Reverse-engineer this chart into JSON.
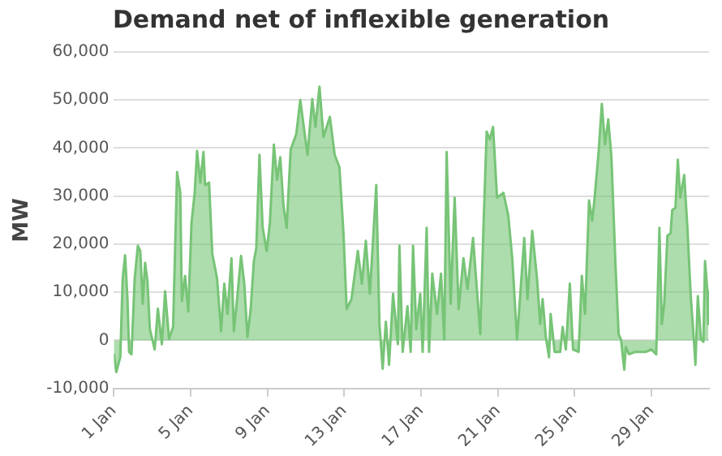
{
  "chart_data": {
    "type": "area",
    "title": "Demand net of inflexible generation",
    "ylabel": "MW",
    "xlim": [
      "--01-01",
      "--02-01"
    ],
    "ylim": [
      -10000,
      60000
    ],
    "xticks": [
      {
        "value": "--01-01",
        "label": "1 Jan"
      },
      {
        "value": "--01-05",
        "label": "5 Jan"
      },
      {
        "value": "--01-09",
        "label": "9 Jan"
      },
      {
        "value": "--01-13",
        "label": "13 Jan"
      },
      {
        "value": "--01-17",
        "label": "17 Jan"
      },
      {
        "value": "--01-21",
        "label": "21 Jan"
      },
      {
        "value": "--01-25",
        "label": "25 Jan"
      },
      {
        "value": "--01-29",
        "label": "29 Jan"
      }
    ],
    "yticks": [
      {
        "value": -10000,
        "label": "-10,000"
      },
      {
        "value": 0,
        "label": "0"
      },
      {
        "value": 10000,
        "label": "10,000"
      },
      {
        "value": 20000,
        "label": "20,000"
      },
      {
        "value": 30000,
        "label": "30,000"
      },
      {
        "value": 40000,
        "label": "40,000"
      },
      {
        "value": 50000,
        "label": "50,000"
      },
      {
        "value": 60000,
        "label": "60,000"
      }
    ],
    "grid": "y",
    "legend": false,
    "marker": "none",
    "line_style": "solid",
    "x": [
      "--01-01T00:00",
      "--01-01T03:00",
      "--01-01T08:00",
      "--01-01T11:00",
      "--01-01T14:00",
      "--01-01T17:00",
      "--01-01T19:00",
      "--01-01T22:00",
      "--01-02T02:00",
      "--01-02T06:00",
      "--01-02T09:00",
      "--01-02T12:00",
      "--01-02T15:00",
      "--01-02T18:00",
      "--01-02T21:00",
      "--01-03T03:00",
      "--01-03T07:00",
      "--01-03T12:00",
      "--01-03T16:00",
      "--01-03T21:00",
      "--01-04T02:00",
      "--01-04T07:00",
      "--01-04T11:00",
      "--01-04T13:00",
      "--01-04T17:00",
      "--01-04T21:00",
      "--01-05T01:00",
      "--01-05T05:00",
      "--01-05T08:00",
      "--01-05T12:00",
      "--01-05T16:00",
      "--01-05T18:00",
      "--01-05T23:00",
      "--01-06T03:00",
      "--01-06T09:00",
      "--01-06T14:00",
      "--01-06T18:00",
      "--01-06T22:00",
      "--01-07T03:00",
      "--01-07T06:00",
      "--01-07T10:00",
      "--01-07T15:00",
      "--01-07T19:00",
      "--01-07T23:00",
      "--01-08T03:00",
      "--01-08T07:00",
      "--01-08T10:00",
      "--01-08T14:00",
      "--01-08T18:00",
      "--01-08T23:00",
      "--01-09T03:00",
      "--01-09T08:00",
      "--01-09T12:00",
      "--01-09T16:00",
      "--01-09T20:00",
      "--01-10T00:00",
      "--01-10T05:00",
      "--01-10T12:00",
      "--01-10T17:00",
      "--01-11T02:00",
      "--01-11T08:00",
      "--01-11T12:00",
      "--01-11T17:00",
      "--01-11T22:00",
      "--01-12T06:00",
      "--01-12T12:00",
      "--01-12T18:00",
      "--01-12T23:00",
      "--01-13T03:00",
      "--01-13T09:00",
      "--01-13T17:00",
      "--01-13T22:00",
      "--01-14T03:00",
      "--01-14T08:00",
      "--01-14T16:00",
      "--01-14T20:00",
      "--01-15T00:00",
      "--01-15T04:00",
      "--01-15T08:00",
      "--01-15T13:00",
      "--01-15T19:00",
      "--01-15T21:00",
      "--01-16T01:00",
      "--01-16T07:00",
      "--01-16T11:00",
      "--01-16T14:00",
      "--01-16T18:00",
      "--01-16T23:00",
      "--01-17T02:00",
      "--01-17T07:00",
      "--01-17T10:00",
      "--01-17T14:00",
      "--01-17T20:00",
      "--01-18T01:00",
      "--01-18T05:00",
      "--01-18T08:00",
      "--01-18T13:00",
      "--01-18T18:00",
      "--01-18T23:00",
      "--01-19T05:00",
      "--01-19T10:00",
      "--01-19T17:00",
      "--01-20T02:00",
      "--01-20T06:00",
      "--01-20T10:00",
      "--01-20T14:00",
      "--01-20T18:00",
      "--01-20T23:00",
      "--01-21T07:00",
      "--01-21T13:00",
      "--01-21T18:00",
      "--01-21T21:00",
      "--01-22T00:00",
      "--01-22T03:00",
      "--01-22T09:00",
      "--01-22T13:00",
      "--01-22T19:00",
      "--01-23T01:00",
      "--01-23T05:00",
      "--01-23T08:00",
      "--01-23T12:00",
      "--01-23T16:00",
      "--01-23T18:00",
      "--01-23T23:00",
      "--01-24T06:00",
      "--01-24T09:00",
      "--01-24T13:00",
      "--01-24T18:00",
      "--01-24T22:00",
      "--01-25T05:00",
      "--01-25T09:00",
      "--01-25T13:00",
      "--01-25T18:00",
      "--01-25T22:00",
      "--01-26T01:00",
      "--01-26T06:00",
      "--01-26T10:00",
      "--01-26T14:00",
      "--01-26T18:00",
      "--01-26T22:00",
      "--01-27T03:00",
      "--01-27T07:00",
      "--01-27T10:00",
      "--01-27T14:00",
      "--01-27T16:00",
      "--01-27T20:00",
      "--01-28T04:00",
      "--01-28T17:00",
      "--01-29T00:00",
      "--01-29T06:00",
      "--01-29T10:00",
      "--01-29T13:00",
      "--01-29T16:00",
      "--01-29T20:00",
      "--01-30T00:00",
      "--01-30T02:00",
      "--01-30T06:00",
      "--01-30T09:00",
      "--01-30T12:00",
      "--01-30T17:00",
      "--01-30T21:00",
      "--01-31T01:00",
      "--01-31T05:00",
      "--01-31T07:00",
      "--01-31T10:00",
      "--01-31T14:00",
      "--01-31T17:00",
      "--01-31T19:00",
      "--01-31T22:00",
      "--01-31T23:00"
    ],
    "series": [
      {
        "color": "#77c477",
        "values": [
          -2800,
          -6600,
          -3500,
          12900,
          17700,
          8600,
          -2400,
          -2900,
          12900,
          19700,
          18600,
          7600,
          16100,
          12300,
          2300,
          -1900,
          6600,
          -800,
          10200,
          300,
          2800,
          35000,
          30700,
          8200,
          13400,
          6000,
          24400,
          30700,
          39400,
          32800,
          39200,
          32300,
          32800,
          18100,
          12800,
          1900,
          11800,
          5500,
          17100,
          1900,
          8600,
          17600,
          11800,
          700,
          6500,
          16500,
          19200,
          38600,
          23400,
          18600,
          24400,
          40700,
          33400,
          38100,
          28100,
          23400,
          39700,
          42900,
          50000,
          38600,
          50200,
          44400,
          52800,
          42300,
          46500,
          38600,
          36000,
          22300,
          6500,
          8600,
          18600,
          11800,
          20700,
          9700,
          32300,
          3400,
          -5900,
          3900,
          -5100,
          9700,
          -800,
          19700,
          -2400,
          7100,
          -2400,
          19700,
          2300,
          9700,
          -2400,
          23400,
          -2400,
          13900,
          5500,
          13900,
          200,
          39200,
          7600,
          29700,
          6500,
          17100,
          10700,
          21300,
          1300,
          23400,
          43400,
          41800,
          44400,
          29700,
          30700,
          26000,
          17100,
          8600,
          200,
          7100,
          21300,
          8600,
          22800,
          12800,
          3400,
          8600,
          700,
          -3500,
          5500,
          -2400,
          -2400,
          2800,
          -1900,
          11800,
          -1900,
          -2400,
          13400,
          5500,
          29100,
          24900,
          29700,
          39200,
          49200,
          40700,
          46000,
          38100,
          16000,
          1300,
          200,
          -6100,
          -1400,
          -2900,
          -2400,
          -2400,
          -1900,
          -2900,
          23400,
          3400,
          7600,
          21800,
          22300,
          27100,
          27600,
          37600,
          29700,
          34400,
          23400,
          9700,
          200,
          -5100,
          9200,
          200,
          -300,
          16500,
          10200,
          3400
        ]
      }
    ]
  }
}
